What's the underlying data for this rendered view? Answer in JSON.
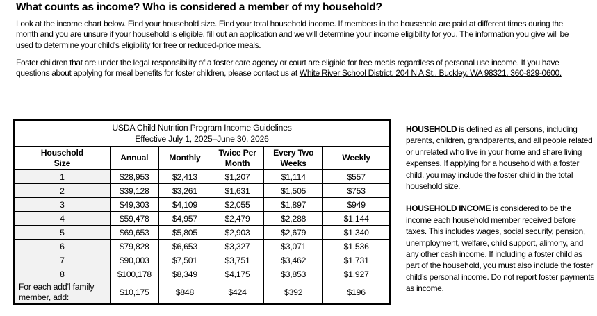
{
  "colors": {
    "page_bg": "#ffffff",
    "text": "#000000",
    "table_border": "#000000",
    "shaded_cell_bg": "#f2f2f2"
  },
  "header": {
    "title": "What counts as income? Who is considered a member of my household?"
  },
  "intro": {
    "paragraph1": "Look at the income chart below. Find your household size. Find your total household income. If members in the household are paid at different times during the month and you are unsure if your household is eligible, fill out an application and we will determine your income eligibility for you. The information you give will be used to determine your child's eligibility for free or reduced-price meals.",
    "paragraph2_lead": "Foster children that are under the legal responsibility of a foster care agency or court are eligible for free meals regardless of personal use income. If you have questions about applying for meal benefits for foster children, please contact us at ",
    "contact_link": "White River School District, 204 N A St., Buckley, WA 98321, 360-829-0600."
  },
  "income_table": {
    "title_line1": "USDA Child Nutrition Program Income Guidelines",
    "title_line2": "Effective July 1, 2025–June 30, 2026",
    "column_headers": [
      "Household\nSize",
      "Annual",
      "Monthly",
      "Twice Per\nMonth",
      "Every Two\nWeeks",
      "Weekly"
    ],
    "rows": [
      {
        "household_size": "1",
        "values": [
          "$28,953",
          "$2,413",
          "$1,207",
          "$1,114",
          "$557"
        ]
      },
      {
        "household_size": "2",
        "values": [
          "$39,128",
          "$3,261",
          "$1,631",
          "$1,505",
          "$753"
        ]
      },
      {
        "household_size": "3",
        "values": [
          "$49,303",
          "$4,109",
          "$2,055",
          "$1,897",
          "$949"
        ]
      },
      {
        "household_size": "4",
        "values": [
          "$59,478",
          "$4,957",
          "$2,479",
          "$2,288",
          "$1,144"
        ]
      },
      {
        "household_size": "5",
        "values": [
          "$69,653",
          "$5,805",
          "$2,903",
          "$2,679",
          "$1,340"
        ]
      },
      {
        "household_size": "6",
        "values": [
          "$79,828",
          "$6,653",
          "$3,327",
          "$3,071",
          "$1,536"
        ]
      },
      {
        "household_size": "7",
        "values": [
          "$90,003",
          "$7,501",
          "$3,751",
          "$3,462",
          "$1,731"
        ]
      },
      {
        "household_size": "8",
        "values": [
          "$100,178",
          "$8,349",
          "$4,175",
          "$3,853",
          "$1,927"
        ]
      }
    ],
    "additional_member_row": {
      "label": "For each add’l family member, add:",
      "values": [
        "$10,175",
        "$848",
        "$424",
        "$392",
        "$196"
      ]
    }
  },
  "definitions": {
    "household": {
      "term": "HOUSEHOLD",
      "text": " is defined as all persons, including parents, children, grandparents, and all people related or unrelated who live in your home and share living expenses. If applying for a household with a foster child, you may include the foster child in the total household size."
    },
    "household_income": {
      "term": "HOUSEHOLD INCOME",
      "text": " is considered to be the income each household member received before taxes. This includes wages, social security, pension, unemployment, welfare, child support, alimony, and any other cash income. If including a foster child as part of the household, you must also include the foster child’s personal income. Do not report foster payments as income."
    }
  }
}
